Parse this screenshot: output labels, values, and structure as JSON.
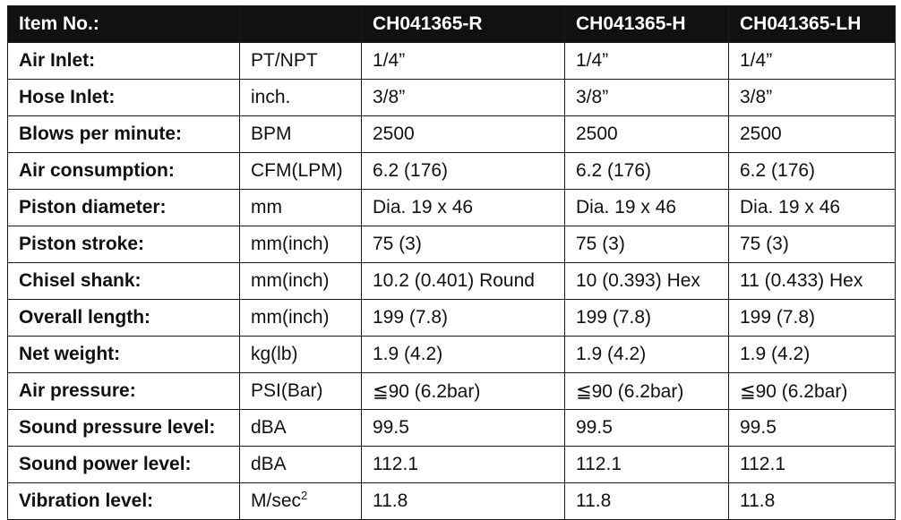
{
  "header": {
    "item_label": "Item No.:",
    "models": [
      "CH041365-R",
      "CH041365-H",
      "CH041365-LH"
    ]
  },
  "rows": [
    {
      "param": "Air Inlet:",
      "unit": "PT/NPT",
      "values": [
        "1/4”",
        "1/4”",
        "1/4”"
      ]
    },
    {
      "param": "Hose Inlet:",
      "unit": "inch.",
      "values": [
        "3/8”",
        "3/8”",
        "3/8”"
      ]
    },
    {
      "param": "Blows per minute:",
      "unit": "BPM",
      "values": [
        "2500",
        "2500",
        "2500"
      ]
    },
    {
      "param": "Air consumption:",
      "unit": "CFM(LPM)",
      "values": [
        "6.2 (176)",
        "6.2 (176)",
        "6.2 (176)"
      ]
    },
    {
      "param": "Piston diameter:",
      "unit": "mm",
      "values": [
        "Dia. 19 x 46",
        "Dia. 19 x 46",
        "Dia. 19 x 46"
      ]
    },
    {
      "param": "Piston stroke:",
      "unit": "mm(inch)",
      "values": [
        "75 (3)",
        "75 (3)",
        "75 (3)"
      ]
    },
    {
      "param": "Chisel shank:",
      "unit": "mm(inch)",
      "values": [
        "10.2 (0.401) Round",
        "10 (0.393) Hex",
        "11 (0.433) Hex"
      ]
    },
    {
      "param": "Overall length:",
      "unit": "mm(inch)",
      "values": [
        "199 (7.8)",
        "199 (7.8)",
        "199 (7.8)"
      ]
    },
    {
      "param": "Net weight:",
      "unit": "kg(lb)",
      "values": [
        "1.9 (4.2)",
        "1.9 (4.2)",
        "1.9 (4.2)"
      ]
    },
    {
      "param": "Air pressure:",
      "unit": "PSI(Bar)",
      "values": [
        "≦90 (6.2bar)",
        "≦90 (6.2bar)",
        "≦90 (6.2bar)"
      ]
    },
    {
      "param": "Sound pressure level:",
      "unit": "dBA",
      "values": [
        "99.5",
        "99.5",
        "99.5"
      ]
    },
    {
      "param": "Sound power level:",
      "unit": "dBA",
      "values": [
        "112.1",
        "112.1",
        "112.1"
      ]
    },
    {
      "param": "Vibration level:",
      "unit": "M/sec",
      "unit_sup": "2",
      "values": [
        "11.8",
        "11.8",
        "11.8"
      ]
    }
  ]
}
